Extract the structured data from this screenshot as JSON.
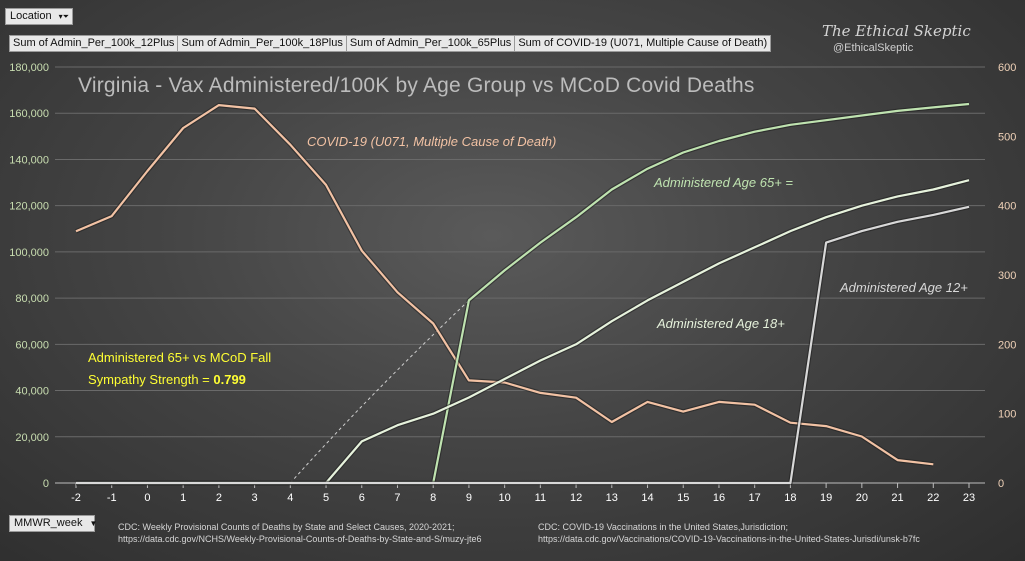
{
  "filters": {
    "location_label": "Location",
    "week_label": "MMWR_week"
  },
  "fields": [
    "Sum of Admin_Per_100k_12Plus",
    "Sum of Admin_Per_100k_18Plus",
    "Sum of Admin_Per_100k_65Plus",
    "Sum of COVID-19 (U071, Multiple Cause of Death)"
  ],
  "branding": {
    "name": "The Ethical Skeptic",
    "handle": "@EthicalSkeptic"
  },
  "sources": {
    "left": {
      "prefix": "CDC:",
      "title": "Weekly Provisional Counts of Deaths by State and Select Causes, 2020-2021;",
      "url": "https://data.cdc.gov/NCHS/Weekly-Provisional-Counts-of-Deaths-by-State-and-S/muzy-jte6"
    },
    "right": {
      "prefix": "CDC:",
      "title": "COVID-19 Vaccinations in the United States,Jurisdiction;",
      "url": "https://data.cdc.gov/Vaccinations/COVID-19-Vaccinations-in-the-United-States-Jurisdi/unsk-b7fc"
    }
  },
  "colors": {
    "deaths": "#f2c2a4",
    "age65": "#bfe3b0",
    "age18": "#e6f2dc",
    "age12": "#d8d8d8",
    "grid": "#6a6a6a",
    "tick_left": "#c8ddb0",
    "tick_right": "#f0d2b8",
    "tick_x": "#ffffff",
    "highlight": "#ffff33",
    "annotation": "#eeeeee"
  },
  "chart_data": {
    "type": "line",
    "title": "Virginia - Vax Administered/100K by Age Group vs MCoD Covid Deaths",
    "x": [
      -2,
      -1,
      0,
      1,
      2,
      3,
      4,
      5,
      6,
      7,
      8,
      9,
      10,
      11,
      12,
      13,
      14,
      15,
      16,
      17,
      18,
      19,
      20,
      21,
      22,
      23
    ],
    "xlim": [
      -2,
      23
    ],
    "y_left": {
      "lim": [
        0,
        180000
      ],
      "ticks": [
        0,
        20000,
        40000,
        60000,
        80000,
        100000,
        120000,
        140000,
        160000,
        180000
      ],
      "tick_labels": [
        "0",
        "20,000",
        "40,000",
        "60,000",
        "80,000",
        "100,000",
        "120,000",
        "140,000",
        "160,000",
        "180,000"
      ]
    },
    "y_right": {
      "lim": [
        0,
        600
      ],
      "ticks": [
        0,
        100,
        200,
        300,
        400,
        500,
        600
      ],
      "tick_labels": [
        "0",
        "100",
        "200",
        "300",
        "400",
        "500",
        "600"
      ]
    },
    "grid": true,
    "series": [
      {
        "name": "Sum of COVID-19 (U071, Multiple Cause of Death)",
        "axis": "right",
        "color_key": "deaths",
        "values": [
          363,
          385,
          450,
          512,
          545,
          540,
          488,
          430,
          335,
          275,
          230,
          148,
          145,
          130,
          123,
          88,
          117,
          103,
          117,
          113,
          87,
          82,
          67,
          33,
          27,
          null
        ]
      },
      {
        "name": "Sum of Admin_Per_100k_65Plus",
        "axis": "left",
        "color_key": "age65",
        "values": [
          0,
          0,
          0,
          0,
          0,
          0,
          0,
          0,
          0,
          0,
          0,
          79000,
          92000,
          104000,
          115000,
          127000,
          136000,
          143000,
          148000,
          152000,
          155000,
          157000,
          159000,
          161000,
          162500,
          164000
        ]
      },
      {
        "name": "Sum of Admin_Per_100k_18Plus",
        "axis": "left",
        "color_key": "age18",
        "values": [
          0,
          0,
          0,
          0,
          0,
          0,
          0,
          0,
          18000,
          25000,
          30000,
          37000,
          45000,
          53000,
          60000,
          70000,
          79000,
          87000,
          95000,
          102000,
          109000,
          115000,
          120000,
          124000,
          127000,
          131000
        ]
      },
      {
        "name": "Sum of Admin_Per_100k_12Plus",
        "axis": "left",
        "color_key": "age12",
        "values": [
          0,
          0,
          0,
          0,
          0,
          0,
          0,
          0,
          0,
          0,
          0,
          0,
          0,
          0,
          0,
          0,
          0,
          0,
          0,
          0,
          0,
          104000,
          109000,
          113000,
          116000,
          119500
        ]
      }
    ],
    "trend_projection": {
      "from_x": 4,
      "to_x": 9,
      "to_y": 79000,
      "style": "dashed"
    },
    "annotations": [
      {
        "text": "COVID-19 (U071, Multiple Cause of Death)",
        "near_series": "deaths"
      },
      {
        "text": "Administered Age 65+ =",
        "near_series": "age65"
      },
      {
        "text": "Administered Age 18+",
        "near_series": "age18"
      },
      {
        "text": "Administered Age 12+",
        "near_series": "age12"
      }
    ],
    "stat_box": {
      "line1": "Administered 65+ vs MCoD Fall",
      "line2_prefix": "Sympathy  Strength  =",
      "value": "0.799"
    }
  }
}
